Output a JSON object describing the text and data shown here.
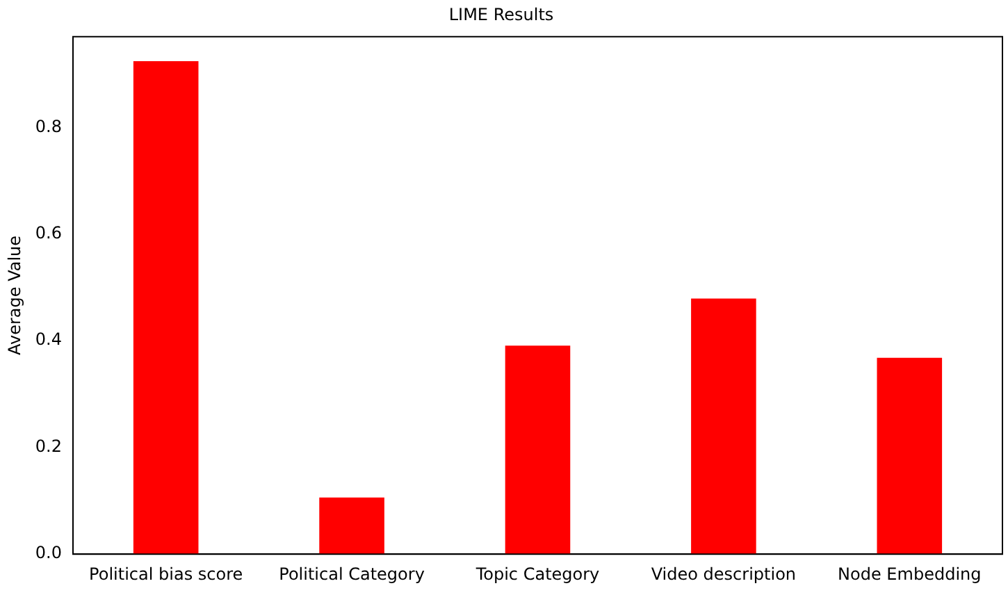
{
  "chart_data": {
    "type": "bar",
    "title": "LIME Results",
    "ylabel": "Average Value",
    "categories": [
      "Political bias score",
      "Political Category",
      "Topic Category",
      "Video description",
      "Node Embedding"
    ],
    "values": [
      0.924,
      0.106,
      0.391,
      0.479,
      0.368
    ],
    "color": "#ff0000",
    "ylim": [
      0,
      0.97
    ],
    "yticks": [
      {
        "value": 0,
        "label": "0.0"
      },
      {
        "value": 0.2,
        "label": "0.2"
      },
      {
        "value": 0.4,
        "label": "0.4"
      },
      {
        "value": 0.6,
        "label": "0.6"
      },
      {
        "value": 0.8,
        "label": "0.8"
      }
    ],
    "grid": false,
    "legend": false
  }
}
